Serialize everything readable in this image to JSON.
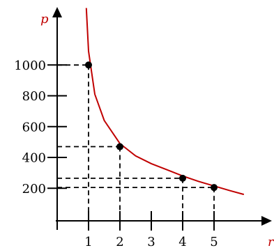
{
  "chart_data": {
    "type": "line",
    "xlabel": "r",
    "ylabel": "p",
    "xlim": [
      -1,
      6
    ],
    "ylim": [
      -540,
      1800
    ],
    "x_ticks": [
      "1",
      "2",
      "3",
      "4",
      "5"
    ],
    "y_ticks": [
      "200",
      "400",
      "600",
      "800",
      "1000"
    ],
    "series": [
      {
        "curve": [
          [
            0.93,
            1370
          ],
          [
            1,
            1090
          ],
          [
            1.2,
            810
          ],
          [
            1.5,
            640
          ],
          [
            2,
            490
          ],
          [
            2.5,
            410
          ],
          [
            3,
            360
          ],
          [
            3.5,
            320
          ],
          [
            4,
            280
          ],
          [
            4.5,
            245
          ],
          [
            5,
            215
          ],
          [
            5.5,
            185
          ],
          [
            5.95,
            160
          ]
        ],
        "points": [
          [
            1,
            1000
          ],
          [
            2,
            470
          ],
          [
            4,
            265
          ],
          [
            5,
            205
          ]
        ],
        "color": "#c00000",
        "point_color": "#000000"
      }
    ],
    "dashed_guides": true,
    "grid": false
  }
}
